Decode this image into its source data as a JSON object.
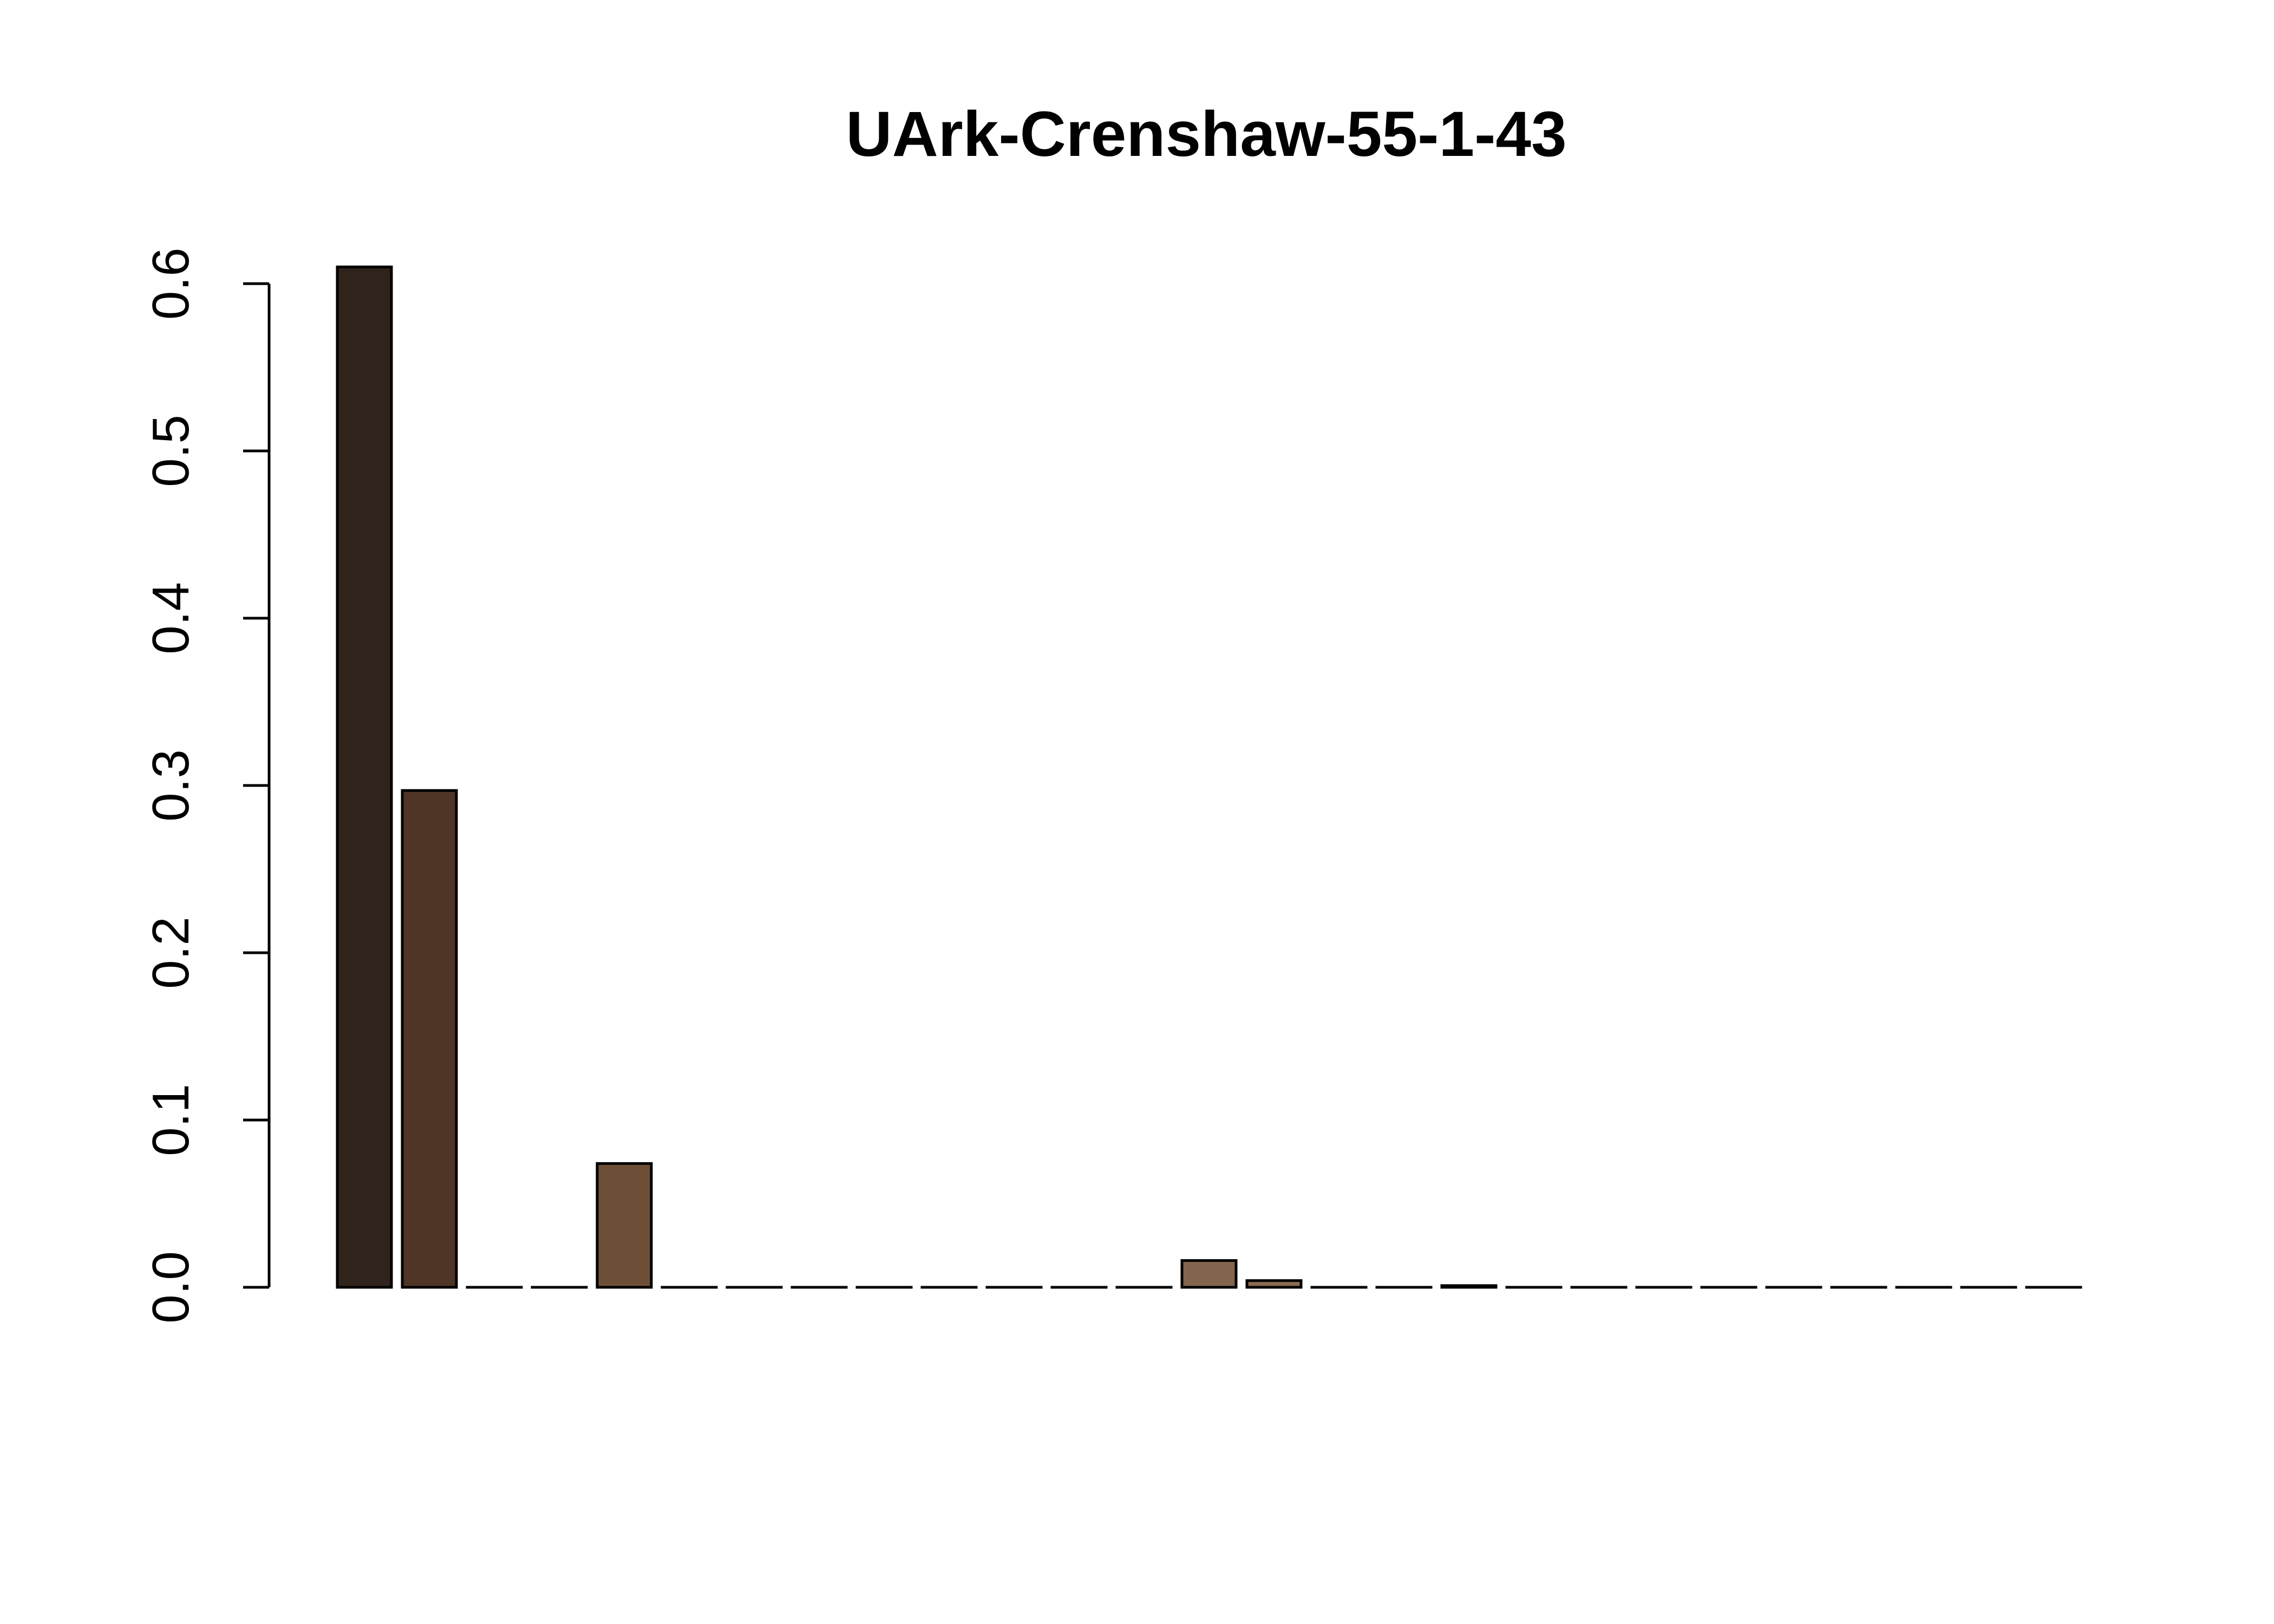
{
  "chart_data": {
    "type": "bar",
    "title": "UArk-Crenshaw-55-1-43",
    "xlabel": "",
    "ylabel": "",
    "ylim": [
      0,
      0.62
    ],
    "yticks": [
      0.0,
      0.1,
      0.2,
      0.3,
      0.4,
      0.5,
      0.6
    ],
    "ytick_labels": [
      "0.0",
      "0.1",
      "0.2",
      "0.3",
      "0.4",
      "0.5",
      "0.6"
    ],
    "grid": false,
    "legend": "none",
    "values": [
      0.61,
      0.297,
      0.0,
      0.0,
      0.074,
      0.0,
      0.0,
      0.0,
      0.0,
      0.0,
      0.0,
      0.0,
      0.0,
      0.016,
      0.004,
      0.0,
      0.0,
      0.001,
      0.0,
      0.0,
      0.0,
      0.0,
      0.0,
      0.0,
      0.0,
      0.0,
      0.0
    ],
    "colors": [
      "#30231b",
      "#4e3526",
      "#5a3f2c",
      "#5e4230",
      "#6d4f38",
      "#6e503a",
      "#70523c",
      "#72543e",
      "#745640",
      "#765842",
      "#785a44",
      "#7a5c46",
      "#7c5e48",
      "#83654d",
      "#8a6c52",
      "#8c6e54",
      "#8e7056",
      "#907258",
      "#92745a",
      "#94765c",
      "#96785e",
      "#987a60",
      "#9a7c62",
      "#9c7e64",
      "#9e8066",
      "#a08268",
      "#a2846a"
    ]
  }
}
